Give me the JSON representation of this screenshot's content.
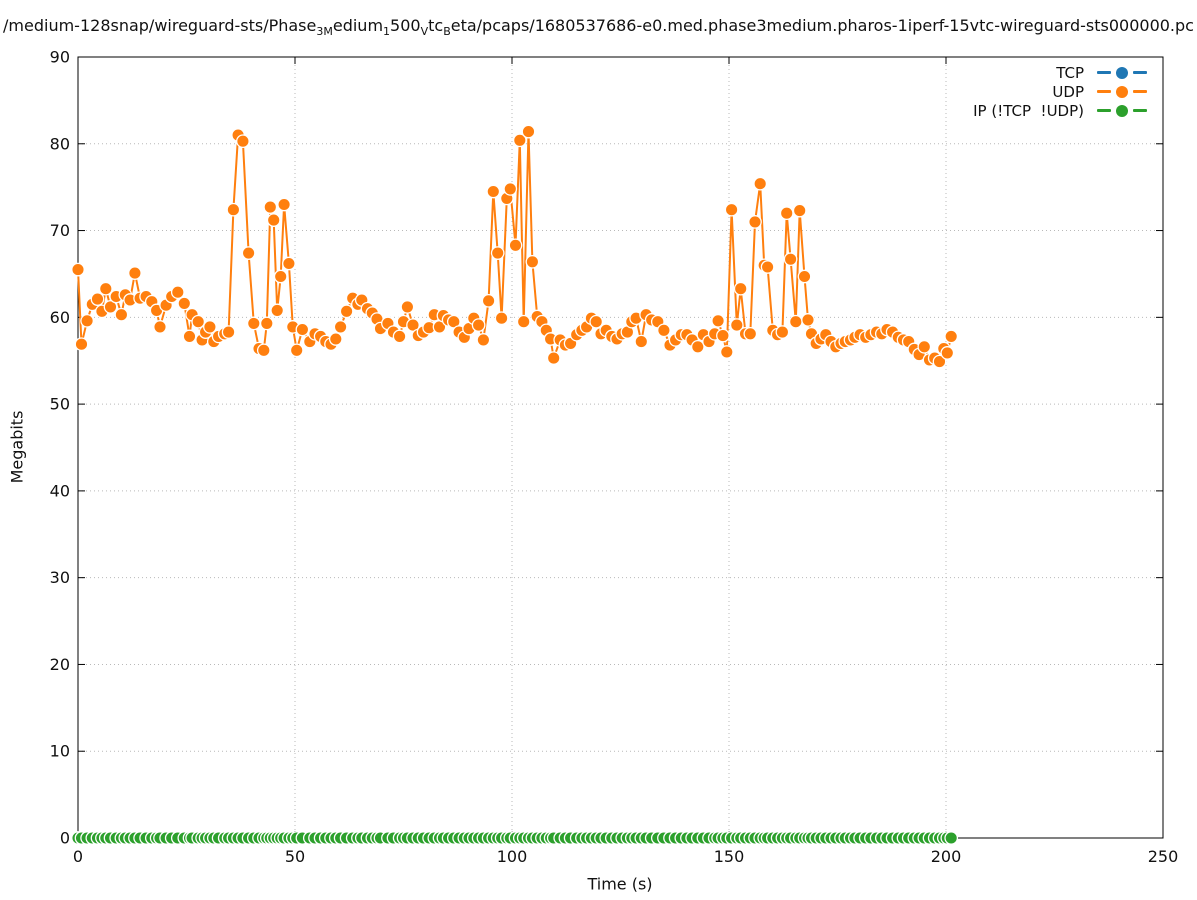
{
  "title_segments": [
    {
      "text": "/medium-128snap/wireguard-sts/Phase",
      "sub": false
    },
    {
      "text": "3M",
      "sub": true
    },
    {
      "text": "edium",
      "sub": false
    },
    {
      "text": "1",
      "sub": true
    },
    {
      "text": "500",
      "sub": false
    },
    {
      "text": "V",
      "sub": true
    },
    {
      "text": "tc",
      "sub": false
    },
    {
      "text": "B",
      "sub": true
    },
    {
      "text": "eta/pcaps/1680537686-e0.med.phase3medium.pharos-1iperf-15vtc-wireguard-sts000000.pc",
      "sub": false
    }
  ],
  "legend": {
    "position": "top-right",
    "items": [
      {
        "label": "TCP",
        "color": "#1f77b4"
      },
      {
        "label": "UDP",
        "color": "#ff7f0e"
      },
      {
        "label": "IP (!TCP  !UDP)",
        "color": "#2ca02c"
      }
    ]
  },
  "chart_data": {
    "type": "line",
    "title": "/medium-128snap/wireguard-sts/Phase3Medium1500VtcBeta/pcaps/1680537686-e0.med.phase3medium.pharos-1iperf-15vtc-wireguard-sts000000.pc",
    "xlabel": "Time (s)",
    "ylabel": "Megabits",
    "xlim": [
      0,
      250
    ],
    "ylim": [
      0,
      90
    ],
    "xticks": [
      0,
      50,
      100,
      150,
      200,
      250
    ],
    "yticks": [
      0,
      10,
      20,
      30,
      40,
      50,
      60,
      70,
      80,
      90
    ],
    "grid": true,
    "grid_style": "dotted",
    "marker": "circle",
    "legend_position": "top-right",
    "series": [
      {
        "name": "TCP",
        "color": "#1f77b4",
        "points": []
      },
      {
        "name": "UDP",
        "color": "#ff7f0e",
        "points": [
          [
            0,
            65.5
          ],
          [
            0.8,
            56.9
          ],
          [
            2.1,
            59.6
          ],
          [
            3.3,
            61.5
          ],
          [
            4.5,
            62.1
          ],
          [
            5.5,
            60.7
          ],
          [
            6.4,
            63.3
          ],
          [
            7.5,
            61.2
          ],
          [
            8.8,
            62.4
          ],
          [
            10,
            60.3
          ],
          [
            10.9,
            62.6
          ],
          [
            12,
            62
          ],
          [
            13.1,
            65.1
          ],
          [
            14.3,
            62.2
          ],
          [
            15.7,
            62.4
          ],
          [
            17,
            61.8
          ],
          [
            18.1,
            60.8
          ],
          [
            18.9,
            58.9
          ],
          [
            20.3,
            61.4
          ],
          [
            21.6,
            62.4
          ],
          [
            23,
            62.9
          ],
          [
            24.5,
            61.6
          ],
          [
            25.7,
            57.8
          ],
          [
            26.3,
            60.3
          ],
          [
            27.7,
            59.5
          ],
          [
            28.6,
            57.4
          ],
          [
            29.4,
            58.3
          ],
          [
            30.4,
            58.9
          ],
          [
            31.3,
            57.2
          ],
          [
            32.4,
            57.8
          ],
          [
            33.8,
            58.1
          ],
          [
            34.7,
            58.3
          ],
          [
            35.8,
            72.4
          ],
          [
            36.9,
            81
          ],
          [
            38,
            80.3
          ],
          [
            39.3,
            67.4
          ],
          [
            40.5,
            59.3
          ],
          [
            41.7,
            56.4
          ],
          [
            42.8,
            56.2
          ],
          [
            43.5,
            59.3
          ],
          [
            44.3,
            72.7
          ],
          [
            45.1,
            71.2
          ],
          [
            45.9,
            60.8
          ],
          [
            46.7,
            64.7
          ],
          [
            47.5,
            73
          ],
          [
            48.6,
            66.2
          ],
          [
            49.5,
            58.9
          ],
          [
            50.4,
            56.2
          ],
          [
            51.7,
            58.6
          ],
          [
            53.4,
            57.2
          ],
          [
            54.6,
            58.1
          ],
          [
            55.9,
            57.8
          ],
          [
            57.1,
            57.2
          ],
          [
            58.3,
            56.9
          ],
          [
            59.4,
            57.5
          ],
          [
            60.5,
            58.9
          ],
          [
            61.9,
            60.7
          ],
          [
            63.3,
            62.2
          ],
          [
            64.5,
            61.5
          ],
          [
            65.4,
            62
          ],
          [
            66.7,
            61
          ],
          [
            67.8,
            60.5
          ],
          [
            68.9,
            59.8
          ],
          [
            69.7,
            58.7
          ],
          [
            71.4,
            59.3
          ],
          [
            72.7,
            58.3
          ],
          [
            74.1,
            57.8
          ],
          [
            75,
            59.5
          ],
          [
            75.9,
            61.2
          ],
          [
            77.2,
            59.1
          ],
          [
            78.4,
            57.9
          ],
          [
            79.6,
            58.3
          ],
          [
            80.9,
            58.8
          ],
          [
            82.1,
            60.3
          ],
          [
            83.3,
            58.9
          ],
          [
            84.2,
            60.2
          ],
          [
            85.4,
            59.7
          ],
          [
            86.6,
            59.5
          ],
          [
            87.8,
            58.3
          ],
          [
            89,
            57.7
          ],
          [
            90.1,
            58.7
          ],
          [
            91.2,
            59.9
          ],
          [
            92.3,
            59.1
          ],
          [
            93.4,
            57.4
          ],
          [
            94.6,
            61.9
          ],
          [
            95.7,
            74.5
          ],
          [
            96.7,
            67.4
          ],
          [
            97.6,
            59.9
          ],
          [
            98.8,
            73.7
          ],
          [
            99.6,
            74.8
          ],
          [
            100.8,
            68.3
          ],
          [
            101.8,
            80.4
          ],
          [
            102.7,
            59.5
          ],
          [
            103.8,
            81.4
          ],
          [
            104.7,
            66.4
          ],
          [
            105.8,
            60.1
          ],
          [
            106.9,
            59.5
          ],
          [
            107.9,
            58.5
          ],
          [
            108.9,
            57.5
          ],
          [
            109.6,
            55.3
          ],
          [
            111.1,
            57.4
          ],
          [
            112.3,
            56.8
          ],
          [
            113.5,
            57
          ],
          [
            114.9,
            58
          ],
          [
            116.1,
            58.5
          ],
          [
            117.2,
            58.9
          ],
          [
            118.3,
            59.9
          ],
          [
            119.4,
            59.5
          ],
          [
            120.5,
            58.1
          ],
          [
            121.7,
            58.5
          ],
          [
            123,
            57.8
          ],
          [
            124.2,
            57.5
          ],
          [
            125.4,
            58.1
          ],
          [
            126.6,
            58.3
          ],
          [
            127.6,
            59.5
          ],
          [
            128.6,
            59.9
          ],
          [
            129.8,
            57.2
          ],
          [
            130.9,
            60.3
          ],
          [
            132.2,
            59.7
          ],
          [
            133.6,
            59.5
          ],
          [
            135,
            58.5
          ],
          [
            136.4,
            56.8
          ],
          [
            137.7,
            57.4
          ],
          [
            139,
            58
          ],
          [
            140.3,
            58
          ],
          [
            141.5,
            57.4
          ],
          [
            142.8,
            56.6
          ],
          [
            144.1,
            58
          ],
          [
            145.4,
            57.2
          ],
          [
            146.7,
            58.1
          ],
          [
            147.5,
            59.6
          ],
          [
            148.6,
            57.9
          ],
          [
            149.5,
            56
          ],
          [
            150.6,
            72.4
          ],
          [
            151.8,
            59.1
          ],
          [
            152.7,
            63.3
          ],
          [
            153.8,
            58.1
          ],
          [
            154.9,
            58.1
          ],
          [
            156,
            71
          ],
          [
            157.2,
            75.4
          ],
          [
            158.1,
            66
          ],
          [
            158.9,
            65.8
          ],
          [
            160.1,
            58.5
          ],
          [
            161.2,
            58
          ],
          [
            162.3,
            58.3
          ],
          [
            163.3,
            72
          ],
          [
            164.2,
            66.7
          ],
          [
            165.4,
            59.5
          ],
          [
            166.3,
            72.3
          ],
          [
            167.4,
            64.7
          ],
          [
            168.2,
            59.7
          ],
          [
            169,
            58.1
          ],
          [
            170.1,
            57
          ],
          [
            171.2,
            57.5
          ],
          [
            172.3,
            58
          ],
          [
            173.5,
            57.2
          ],
          [
            174.6,
            56.6
          ],
          [
            175.8,
            57
          ],
          [
            176.8,
            57.2
          ],
          [
            178,
            57.4
          ],
          [
            179,
            57.7
          ],
          [
            180.2,
            58
          ],
          [
            181.5,
            57.7
          ],
          [
            182.7,
            58
          ],
          [
            184,
            58.3
          ],
          [
            185.2,
            58.1
          ],
          [
            186.4,
            58.6
          ],
          [
            187.7,
            58.3
          ],
          [
            189,
            57.7
          ],
          [
            190.2,
            57.4
          ],
          [
            191.4,
            57.2
          ],
          [
            192.7,
            56.3
          ],
          [
            193.8,
            55.7
          ],
          [
            195,
            56.6
          ],
          [
            196.2,
            55.1
          ],
          [
            197.4,
            55.3
          ],
          [
            198.5,
            54.9
          ],
          [
            199.5,
            56.4
          ],
          [
            200.3,
            55.9
          ],
          [
            201.2,
            57.8
          ]
        ]
      },
      {
        "name": "IP (!TCP  !UDP)",
        "color": "#2ca02c",
        "constant_y": 0,
        "x_start": 0,
        "x_end": 201.2,
        "x_follows": "UDP"
      }
    ]
  }
}
